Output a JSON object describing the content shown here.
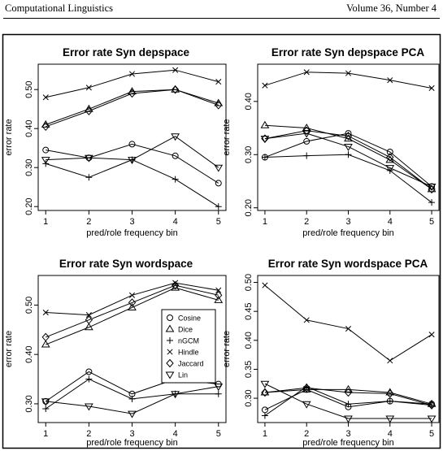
{
  "page": {
    "running_head_left": "Computational Linguistics",
    "running_head_right": "Volume 36, Number 4"
  },
  "legend": {
    "entries": [
      {
        "name": "Cosine",
        "marker": "circle"
      },
      {
        "name": "Dice",
        "marker": "triangle-up"
      },
      {
        "name": "nGCM",
        "marker": "plus"
      },
      {
        "name": "Hindle",
        "marker": "cross"
      },
      {
        "name": "Jaccard",
        "marker": "diamond"
      },
      {
        "name": "Lin",
        "marker": "triangle-down"
      }
    ]
  },
  "chart_data": [
    {
      "type": "line",
      "title": "Error rate Syn depspace",
      "xlabel": "pred/role frequency bin",
      "ylabel": "error rate",
      "x": [
        1,
        2,
        3,
        4,
        5
      ],
      "xticks": [
        "1",
        "2",
        "3",
        "4",
        "5"
      ],
      "ylim": [
        0.19,
        0.565
      ],
      "yticks": [
        0.2,
        0.3,
        0.4,
        0.5
      ],
      "ytick_labels": [
        "0.20",
        "0.30",
        "0.40",
        "0.50"
      ],
      "grid": false,
      "legend": false,
      "series": [
        {
          "name": "Cosine",
          "values": [
            0.345,
            0.325,
            0.36,
            0.33,
            0.26
          ]
        },
        {
          "name": "Dice",
          "values": [
            0.41,
            0.45,
            0.495,
            0.5,
            0.465
          ]
        },
        {
          "name": "nGCM",
          "values": [
            0.31,
            0.275,
            0.32,
            0.27,
            0.2
          ]
        },
        {
          "name": "Hindle",
          "values": [
            0.48,
            0.505,
            0.54,
            0.55,
            0.52
          ]
        },
        {
          "name": "Jaccard",
          "values": [
            0.405,
            0.445,
            0.49,
            0.5,
            0.46
          ]
        },
        {
          "name": "Lin",
          "values": [
            0.32,
            0.325,
            0.32,
            0.38,
            0.3
          ]
        }
      ]
    },
    {
      "type": "line",
      "title": "Error rate Syn depspace PCA",
      "xlabel": "pred/role frequency bin",
      "ylabel": "error rate",
      "x": [
        1,
        2,
        3,
        4,
        5
      ],
      "xticks": [
        "1",
        "2",
        "3",
        "4",
        "5"
      ],
      "ylim": [
        0.195,
        0.47
      ],
      "yticks": [
        0.2,
        0.3,
        0.4
      ],
      "ytick_labels": [
        "0.20",
        "0.30",
        "0.40"
      ],
      "grid": false,
      "legend": false,
      "series": [
        {
          "name": "Cosine",
          "values": [
            0.295,
            0.325,
            0.34,
            0.305,
            0.24
          ]
        },
        {
          "name": "Dice",
          "values": [
            0.355,
            0.35,
            0.33,
            0.29,
            0.235
          ]
        },
        {
          "name": "nGCM",
          "values": [
            0.295,
            0.298,
            0.3,
            0.27,
            0.21
          ]
        },
        {
          "name": "Hindle",
          "values": [
            0.43,
            0.455,
            0.453,
            0.44,
            0.425
          ]
        },
        {
          "name": "Jaccard",
          "values": [
            0.33,
            0.345,
            0.335,
            0.295,
            0.235
          ]
        },
        {
          "name": "Lin",
          "values": [
            0.33,
            0.34,
            0.315,
            0.275,
            0.24
          ]
        }
      ]
    },
    {
      "type": "line",
      "title": "Error rate Syn wordspace",
      "xlabel": "pred/role frequency bin",
      "ylabel": "error rate",
      "x": [
        1,
        2,
        3,
        4,
        5
      ],
      "xticks": [
        "1",
        "2",
        "3",
        "4",
        "5"
      ],
      "ylim": [
        0.262,
        0.56
      ],
      "yticks": [
        0.3,
        0.4,
        0.5
      ],
      "ytick_labels": [
        "0.30",
        "0.40",
        "0.50"
      ],
      "grid": false,
      "legend": "inside-right",
      "series": [
        {
          "name": "Cosine",
          "values": [
            0.305,
            0.365,
            0.32,
            0.35,
            0.34
          ]
        },
        {
          "name": "Dice",
          "values": [
            0.42,
            0.455,
            0.495,
            0.535,
            0.51
          ]
        },
        {
          "name": "nGCM",
          "values": [
            0.29,
            0.35,
            0.31,
            0.32,
            0.32
          ]
        },
        {
          "name": "Hindle",
          "values": [
            0.485,
            0.48,
            0.52,
            0.545,
            0.53
          ]
        },
        {
          "name": "Jaccard",
          "values": [
            0.435,
            0.47,
            0.505,
            0.54,
            0.52
          ]
        },
        {
          "name": "Lin",
          "values": [
            0.305,
            0.295,
            0.28,
            0.32,
            0.335
          ]
        }
      ]
    },
    {
      "type": "line",
      "title": "Error rate Syn wordspace PCA",
      "xlabel": "pred/role frequency bin",
      "ylabel": "error rate",
      "x": [
        1,
        2,
        3,
        4,
        5
      ],
      "xticks": [
        "1",
        "2",
        "3",
        "4",
        "5"
      ],
      "ylim": [
        0.258,
        0.512
      ],
      "yticks": [
        0.3,
        0.35,
        0.4,
        0.45,
        0.5
      ],
      "ytick_labels": [
        "0.30",
        "0.35",
        "0.40",
        "0.45",
        "0.50"
      ],
      "grid": false,
      "legend": false,
      "series": [
        {
          "name": "Cosine",
          "values": [
            0.28,
            0.315,
            0.285,
            0.295,
            0.29
          ]
        },
        {
          "name": "Dice",
          "values": [
            0.31,
            0.315,
            0.315,
            0.31,
            0.29
          ]
        },
        {
          "name": "nGCM",
          "values": [
            0.27,
            0.32,
            0.29,
            0.295,
            0.288
          ]
        },
        {
          "name": "Hindle",
          "values": [
            0.495,
            0.435,
            0.42,
            0.365,
            0.41
          ]
        },
        {
          "name": "Jaccard",
          "values": [
            0.31,
            0.318,
            0.31,
            0.308,
            0.288
          ]
        },
        {
          "name": "Lin",
          "values": [
            0.325,
            0.29,
            0.265,
            0.265,
            0.265
          ]
        }
      ]
    }
  ]
}
